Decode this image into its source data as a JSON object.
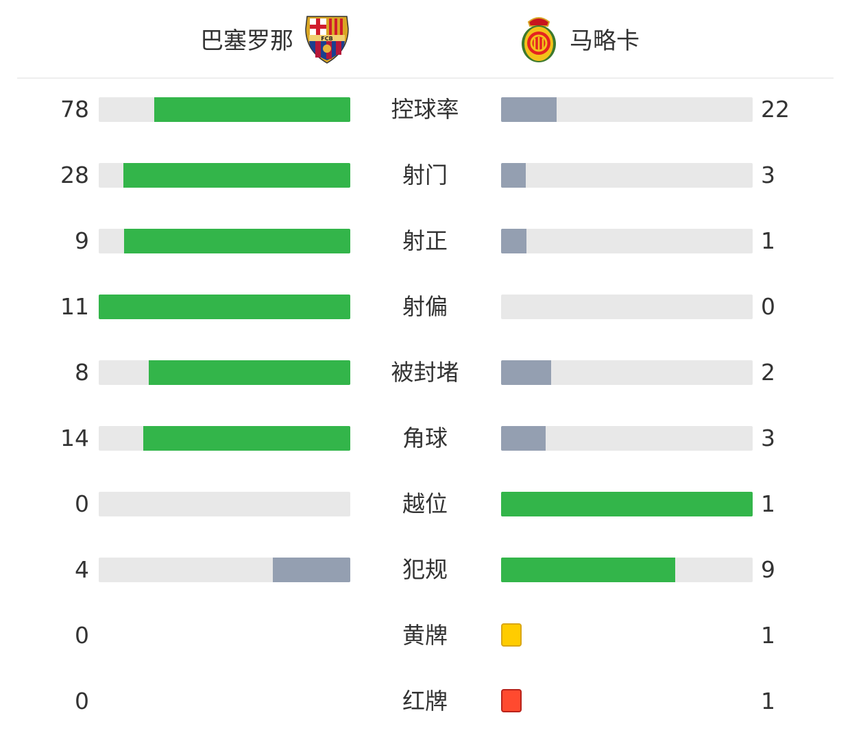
{
  "home": {
    "name": "巴塞罗那",
    "crest": "fc-barcelona-crest"
  },
  "away": {
    "name": "马略卡",
    "crest": "rcd-mallorca-crest"
  },
  "colors": {
    "leader": "#33b54a",
    "trailer": "#949fb1",
    "track": "#e8e8e8",
    "yellow_card": "#ffcc00",
    "red_card": "#ff4a2f"
  },
  "stats": [
    {
      "label": "控球率",
      "home": 78,
      "away": 22
    },
    {
      "label": "射门",
      "home": 28,
      "away": 3
    },
    {
      "label": "射正",
      "home": 9,
      "away": 1
    },
    {
      "label": "射偏",
      "home": 11,
      "away": 0
    },
    {
      "label": "被封堵",
      "home": 8,
      "away": 2
    },
    {
      "label": "角球",
      "home": 14,
      "away": 3
    },
    {
      "label": "越位",
      "home": 0,
      "away": 1
    },
    {
      "label": "犯规",
      "home": 4,
      "away": 9
    },
    {
      "label": "黄牌",
      "home": 0,
      "away": 1,
      "card": "yellow"
    },
    {
      "label": "红牌",
      "home": 0,
      "away": 1,
      "card": "red"
    }
  ]
}
